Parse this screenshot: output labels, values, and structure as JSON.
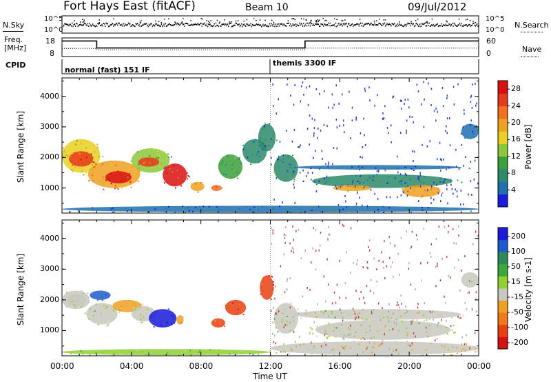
{
  "header": {
    "station": "Fort Hays East (fitACF)",
    "beam": "Beam 10",
    "date": "09/Jul/2012"
  },
  "top_panels": {
    "nsky_label": "N.Sky",
    "nsky_ticks": [
      "10^5",
      "10^0"
    ],
    "nsearch_label": "N.Search",
    "nsearch_ticks": [
      "10^5",
      "10^0"
    ],
    "freq_label": "Freq.",
    "freq_unit": "[MHz]",
    "freq_ticks": [
      "18",
      "8"
    ],
    "nave_label": "Nave",
    "nave_ticks": [
      "60",
      "0"
    ],
    "cpid_label": "CPID",
    "cpid_segments": [
      {
        "label": "normal (fast) 151 IF",
        "start_hour": 0,
        "end_hour": 12
      },
      {
        "label": "themis 3300 IF",
        "start_hour": 12,
        "end_hour": 24
      }
    ],
    "freq_series": [
      [
        0,
        16.3
      ],
      [
        2,
        16.3
      ],
      [
        2,
        12.4
      ],
      [
        14,
        12.4
      ],
      [
        14,
        16.3
      ],
      [
        24,
        16.3
      ]
    ],
    "nave_series": [
      [
        0,
        25
      ],
      [
        2,
        25
      ],
      [
        2,
        20
      ],
      [
        14,
        20
      ],
      [
        14,
        26
      ],
      [
        24,
        26
      ]
    ]
  },
  "chart_data": [
    {
      "type": "heatmap",
      "ylabel": "Slant Range [km]",
      "y_ticks": [
        "1000",
        "2000",
        "3000",
        "4000"
      ],
      "ylim": [
        180,
        4600
      ],
      "xlim": [
        0,
        24
      ],
      "colorbar": {
        "label": "Power [dB]",
        "ticks": [
          "4",
          "8",
          "12",
          "16",
          "20",
          "24",
          "28"
        ],
        "range": [
          0,
          30
        ],
        "colors": [
          "#1a1ae0",
          "#1e6fb0",
          "#2a8a6a",
          "#3aa03a",
          "#8cc83a",
          "#e8d020",
          "#f0a020",
          "#f07020",
          "#e83a1a",
          "#d81010"
        ]
      },
      "echo_regions": [
        {
          "x0": 0.0,
          "x1": 2.2,
          "y0": 1500,
          "y1": 2600,
          "power": 16
        },
        {
          "x0": 0.4,
          "x1": 1.8,
          "y0": 1700,
          "y1": 2200,
          "power": 26
        },
        {
          "x0": 1.5,
          "x1": 4.5,
          "y0": 1000,
          "y1": 1900,
          "power": 20
        },
        {
          "x0": 2.5,
          "x1": 4.0,
          "y0": 1150,
          "y1": 1550,
          "power": 27
        },
        {
          "x0": 4.0,
          "x1": 6.2,
          "y0": 1500,
          "y1": 2300,
          "power": 14
        },
        {
          "x0": 4.4,
          "x1": 5.6,
          "y0": 1700,
          "y1": 2000,
          "power": 24
        },
        {
          "x0": 5.8,
          "x1": 7.2,
          "y0": 1050,
          "y1": 1800,
          "power": 28
        },
        {
          "x0": 7.4,
          "x1": 8.2,
          "y0": 900,
          "y1": 1200,
          "power": 18
        },
        {
          "x0": 8.6,
          "x1": 9.2,
          "y0": 900,
          "y1": 1100,
          "power": 22
        },
        {
          "x0": 9.0,
          "x1": 10.4,
          "y0": 1300,
          "y1": 2100,
          "power": 10
        },
        {
          "x0": 10.4,
          "x1": 11.8,
          "y0": 1800,
          "y1": 2600,
          "power": 6
        },
        {
          "x0": 11.3,
          "x1": 12.3,
          "y0": 2200,
          "y1": 3100,
          "power": 8
        },
        {
          "x0": 12.2,
          "x1": 13.6,
          "y0": 1200,
          "y1": 2100,
          "power": 7
        },
        {
          "x0": 13.4,
          "x1": 23.0,
          "y0": 1600,
          "y1": 1750,
          "power": 4
        },
        {
          "x0": 14.4,
          "x1": 22.5,
          "y0": 1000,
          "y1": 1450,
          "power": 6
        },
        {
          "x0": 15.6,
          "x1": 17.8,
          "y0": 900,
          "y1": 1100,
          "power": 18
        },
        {
          "x0": 19.6,
          "x1": 21.8,
          "y0": 700,
          "y1": 1100,
          "power": 20
        },
        {
          "x0": 23.0,
          "x1": 24.0,
          "y0": 2600,
          "y1": 3100,
          "power": 4
        },
        {
          "x0": 0.0,
          "x1": 24.0,
          "y0": 200,
          "y1": 420,
          "power": 5
        }
      ]
    },
    {
      "type": "heatmap",
      "ylabel": "Slant Range [km]",
      "y_ticks": [
        "1000",
        "2000",
        "3000",
        "4000"
      ],
      "ylim": [
        180,
        4600
      ],
      "xlim": [
        0,
        24
      ],
      "x_ticks": [
        "00:00",
        "04:00",
        "08:00",
        "12:00",
        "16:00",
        "20:00",
        "00:00"
      ],
      "xlabel": "Time UT",
      "colorbar": {
        "label": "Velocity [m s-1]",
        "ticks": [
          "200",
          "100",
          "50",
          "15",
          "-15",
          "-50",
          "-100",
          "-200"
        ],
        "range": [
          -250,
          250
        ],
        "colors": [
          "#1a1ad8",
          "#1e5ad0",
          "#2a8a5a",
          "#3aa83a",
          "#90d030",
          "#c8c8c0",
          "#f0a020",
          "#f07818",
          "#e84010",
          "#d81010"
        ]
      },
      "echo_regions": [
        {
          "x0": 0.0,
          "x1": 1.6,
          "y0": 1700,
          "y1": 2300,
          "velocity": 0
        },
        {
          "x0": 0.3,
          "x1": 1.4,
          "y0": 1800,
          "y1": 2200,
          "velocity": 0
        },
        {
          "x0": 1.4,
          "x1": 3.2,
          "y0": 1200,
          "y1": 1900,
          "velocity": 0
        },
        {
          "x0": 1.6,
          "x1": 2.8,
          "y0": 2000,
          "y1": 2300,
          "velocity": 150
        },
        {
          "x0": 2.9,
          "x1": 4.6,
          "y0": 1600,
          "y1": 2000,
          "velocity": -60
        },
        {
          "x0": 4.0,
          "x1": 5.4,
          "y0": 1300,
          "y1": 1800,
          "velocity": 0
        },
        {
          "x0": 5.0,
          "x1": 6.6,
          "y0": 1100,
          "y1": 1700,
          "velocity": 200
        },
        {
          "x0": 6.6,
          "x1": 7.0,
          "y0": 1200,
          "y1": 1500,
          "velocity": -60
        },
        {
          "x0": 8.6,
          "x1": 9.4,
          "y0": 1100,
          "y1": 1400,
          "velocity": -150
        },
        {
          "x0": 9.4,
          "x1": 10.6,
          "y0": 1500,
          "y1": 2000,
          "velocity": -160
        },
        {
          "x0": 11.4,
          "x1": 12.2,
          "y0": 2000,
          "y1": 2800,
          "velocity": -180
        },
        {
          "x0": 12.2,
          "x1": 13.6,
          "y0": 900,
          "y1": 1900,
          "velocity": 0
        },
        {
          "x0": 13.4,
          "x1": 23.0,
          "y0": 1350,
          "y1": 1700,
          "velocity": 0
        },
        {
          "x0": 14.6,
          "x1": 22.4,
          "y0": 700,
          "y1": 1350,
          "velocity": 0
        },
        {
          "x0": 23.0,
          "x1": 24.0,
          "y0": 2400,
          "y1": 2900,
          "velocity": 0
        },
        {
          "x0": 0.0,
          "x1": 12.0,
          "y0": 200,
          "y1": 400,
          "velocity": 30
        },
        {
          "x0": 12.0,
          "x1": 24.0,
          "y0": 200,
          "y1": 650,
          "velocity": -40
        }
      ]
    }
  ]
}
